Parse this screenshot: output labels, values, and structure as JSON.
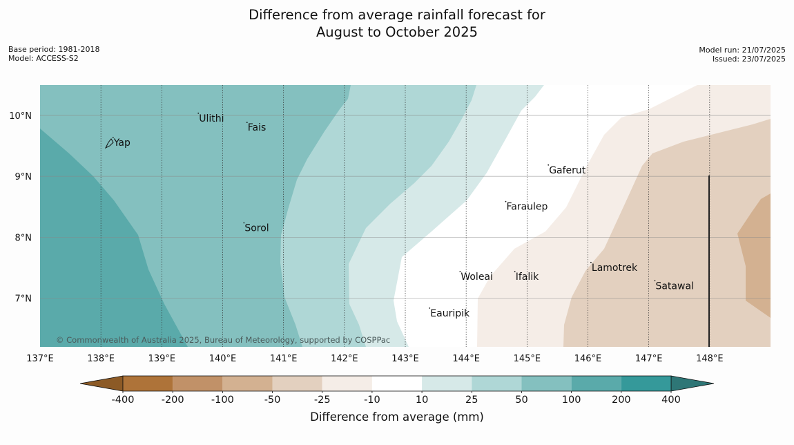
{
  "title_line1": "Difference from average rainfall forecast for",
  "title_line2": "August to October 2025",
  "meta_left": {
    "base_period": "Base period: 1981-2018",
    "model": "Model: ACCESS-S2"
  },
  "meta_right": {
    "model_run": "Model run: 21/07/2025",
    "issued": "Issued: 23/07/2025"
  },
  "copyright": "© Commonwealth of Australia 2025, Bureau of Meteorology, supported by COSPPac",
  "map": {
    "lon_range": [
      137,
      149
    ],
    "lat_range": [
      6.2,
      10.5
    ],
    "lon_ticks": [
      {
        "value": 137,
        "label": "137°E"
      },
      {
        "value": 138,
        "label": "138°E"
      },
      {
        "value": 139,
        "label": "139°E"
      },
      {
        "value": 140,
        "label": "140°E"
      },
      {
        "value": 141,
        "label": "141°E"
      },
      {
        "value": 142,
        "label": "142°E"
      },
      {
        "value": 143,
        "label": "143°E"
      },
      {
        "value": 144,
        "label": "144°E"
      },
      {
        "value": 145,
        "label": "145°E"
      },
      {
        "value": 146,
        "label": "146°E"
      },
      {
        "value": 147,
        "label": "147°E"
      },
      {
        "value": 148,
        "label": "148°E"
      }
    ],
    "lat_ticks": [
      {
        "value": 10,
        "label": "10°N"
      },
      {
        "value": 9,
        "label": "9°N"
      },
      {
        "value": 8,
        "label": "8°N"
      },
      {
        "value": 7,
        "label": "7°N"
      }
    ],
    "places": [
      {
        "name": "Yap",
        "lon": 138.2,
        "lat": 9.5
      },
      {
        "name": "Ulithi",
        "lon": 139.6,
        "lat": 9.9
      },
      {
        "name": "Fais",
        "lon": 140.4,
        "lat": 9.75
      },
      {
        "name": "Sorol",
        "lon": 140.35,
        "lat": 8.1
      },
      {
        "name": "Gaferut",
        "lon": 145.35,
        "lat": 9.05
      },
      {
        "name": "Faraulep",
        "lon": 144.65,
        "lat": 8.45
      },
      {
        "name": "Woleai",
        "lon": 143.9,
        "lat": 7.3
      },
      {
        "name": "Ifalik",
        "lon": 144.8,
        "lat": 7.3
      },
      {
        "name": "Lamotrek",
        "lon": 146.05,
        "lat": 7.45
      },
      {
        "name": "Satawal",
        "lon": 147.1,
        "lat": 7.15
      },
      {
        "name": "Eauripik",
        "lon": 143.4,
        "lat": 6.7
      }
    ],
    "region_colors": [
      "#5aaaaa",
      "#84c0bf",
      "#afd7d6",
      "#d6e9e8",
      "#ffffff",
      "#f5ede7",
      "#e3d0bf",
      "#d3b191"
    ]
  },
  "colorbar": {
    "label": "Difference from average (mm)",
    "ticks": [
      "-400",
      "-200",
      "-100",
      "-50",
      "-25",
      "-10",
      "10",
      "25",
      "50",
      "100",
      "200",
      "400"
    ],
    "colors": [
      "#ae7339",
      "#c19168",
      "#d3b191",
      "#e3d0bf",
      "#f5ede7",
      "#ffffff",
      "#d6e9e8",
      "#afd7d6",
      "#84c0bf",
      "#5aaaaa",
      "#35999a"
    ],
    "extend_low_color": "#8c5a26",
    "extend_high_color": "#2e7676"
  }
}
